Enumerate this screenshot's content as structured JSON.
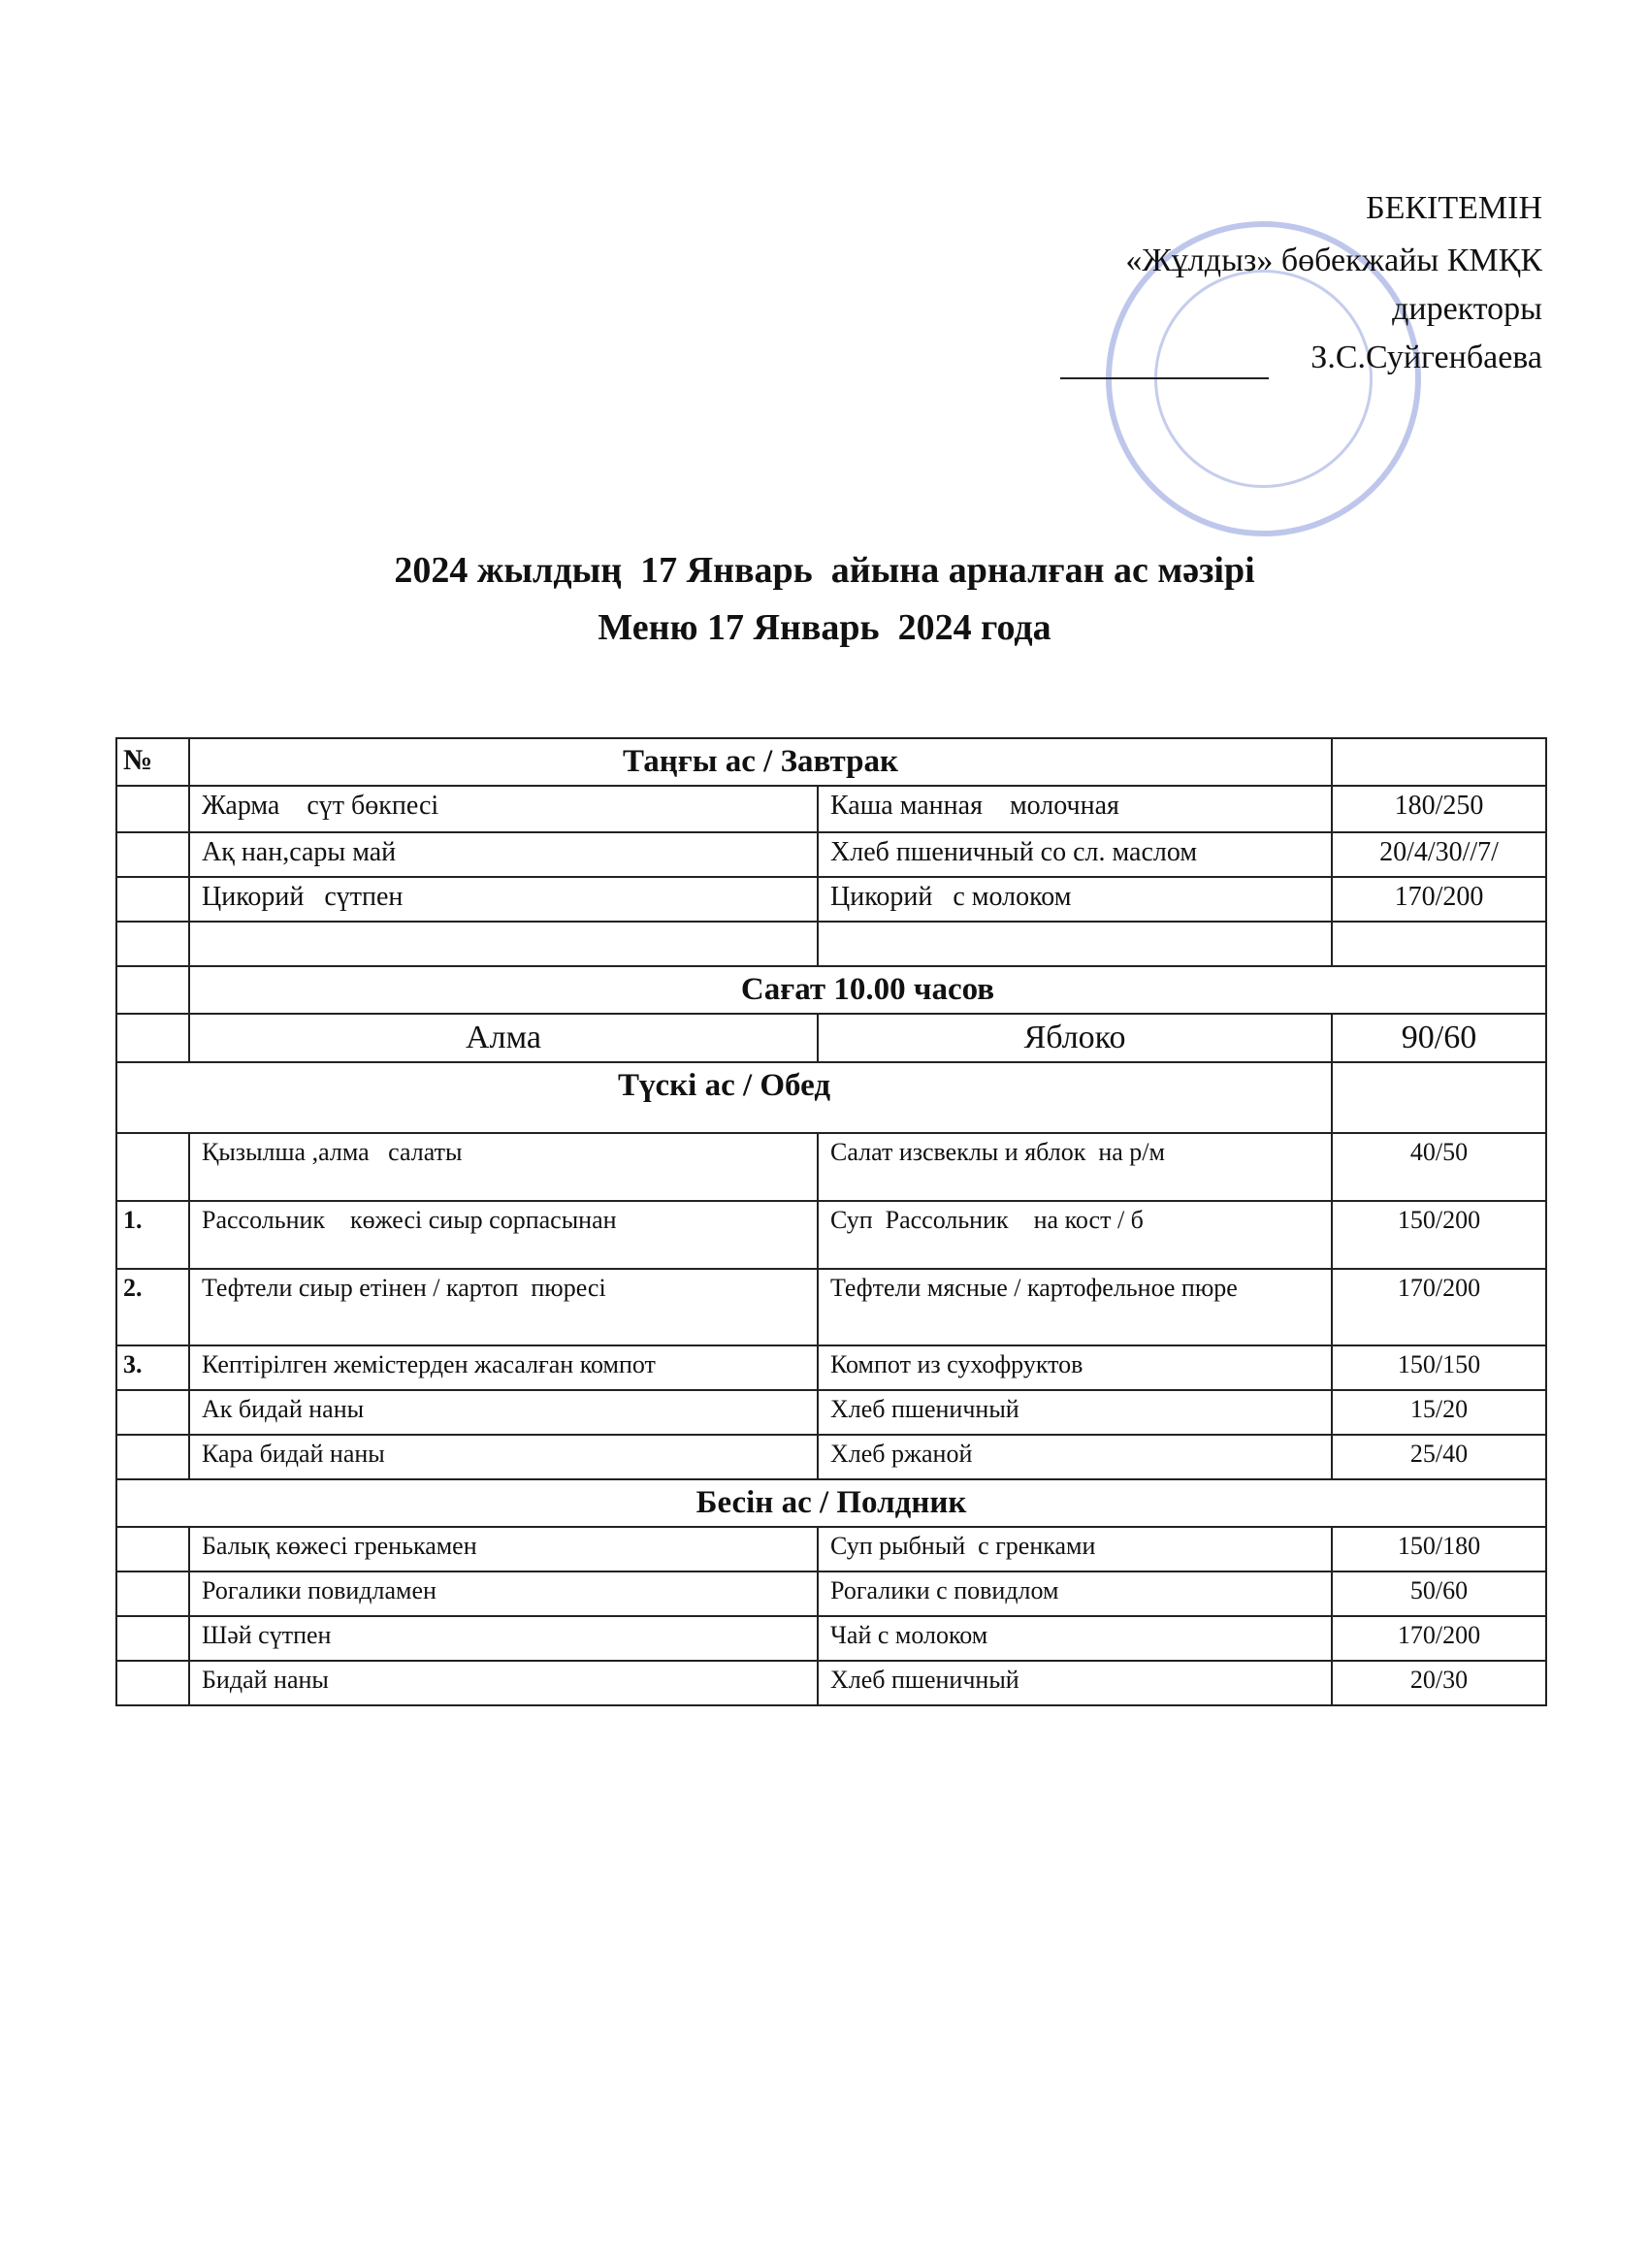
{
  "approval": {
    "title": "БЕКІТЕМІН",
    "org": "«Жұлдыз» бөбекжайы КМҚК",
    "position": "директоры",
    "name": "З.С.Суйгенбаева"
  },
  "heading": {
    "line1": "2024 жылдың  17 Январь  айына арналған ас мәзірі",
    "line2": "Меню 17 Январь  2024 года"
  },
  "table": {
    "number_header": "№",
    "breakfast": {
      "title": "Таңғы ас / Завтрак",
      "rows": [
        {
          "kz": "Жарма    сүт бөкпесі",
          "ru": "Каша манная    молочная",
          "portion": "180/250"
        },
        {
          "kz": "Ақ нан,сары май",
          "ru": "Хлеб пшеничный со сл. маслом",
          "portion": "20/4/30//7/"
        },
        {
          "kz": "Цикорий   сүтпен",
          "ru": "Цикорий   с молоком",
          "portion": "170/200"
        }
      ]
    },
    "snack": {
      "title": "Сағат 10.00 часов",
      "rows": [
        {
          "kz": "Алма",
          "ru": "Яблоко",
          "portion": "90/60"
        }
      ]
    },
    "lunch": {
      "title": "Түскі ас / Обед",
      "rows": [
        {
          "kz": "Қызылша ,алма   салаты",
          "ru": "Салат изсвеклы и яблок  на р/м",
          "portion": "40/50"
        },
        {
          "no": "1.",
          "kz": "Рассольник    көжесі сиыр сорпасынан",
          "ru": "Суп  Рассольник    на кост / б",
          "portion": "150/200"
        },
        {
          "no": "2.",
          "kz": "Тефтели сиыр етінен / картоп  пюресі",
          "ru": "Тефтели мясные / картофельное пюре",
          "portion": "170/200"
        },
        {
          "no": "3.",
          "kz": "Кептірілген жемістерден жасалған компот",
          "ru": "Компот из сухофруктов",
          "portion": "150/150"
        },
        {
          "kz": "Ак бидай наны",
          "ru": "Хлеб пшеничный",
          "portion": "15/20"
        },
        {
          "kz": "Кара бидай наны",
          "ru": "Хлеб ржаной",
          "portion": "25/40"
        }
      ]
    },
    "afternoon": {
      "title": "Бесін ас / Полдник",
      "rows": [
        {
          "kz": "Балық көжесі гренькамен",
          "ru": "Суп рыбный  с гренками",
          "portion": "150/180"
        },
        {
          "kz": "Рогалики повидламен",
          "ru": "Рогалики с повидлом",
          "portion": "50/60"
        },
        {
          "kz": "Шәй сүтпен",
          "ru": "Чай с молоком",
          "portion": "170/200"
        },
        {
          "kz": "Бидай наны",
          "ru": "Хлеб пшеничный",
          "portion": "20/30"
        }
      ]
    }
  }
}
